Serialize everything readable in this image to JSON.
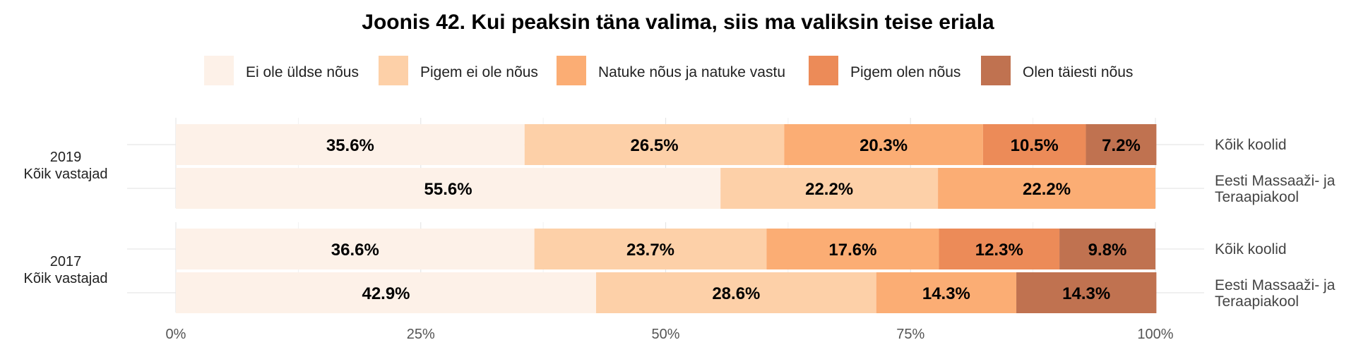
{
  "chart_data": {
    "type": "bar",
    "title": "Joonis 42. Kui peaksin täna valima, siis ma valiksin teise eriala",
    "categories_legend": [
      {
        "name": "Ei ole üldse nõus",
        "color": "#fdf1e8"
      },
      {
        "name": "Pigem ei ole nõus",
        "color": "#fdd0a8"
      },
      {
        "name": "Natuke nõus ja natuke vastu",
        "color": "#fbad74"
      },
      {
        "name": "Pigem olen nõus",
        "color": "#ec8b58"
      },
      {
        "name": "Olen täiesti nõus",
        "color": "#c07250"
      }
    ],
    "legend_position": "top",
    "x_ticks": [
      "0%",
      "25%",
      "50%",
      "75%",
      "100%"
    ],
    "xlim": [
      0,
      100
    ],
    "groups": [
      {
        "label_line1": "2019",
        "label_line2": "Kõik vastajad",
        "rows": [
          {
            "label_line1": "Kõik koolid",
            "label_line2": "",
            "values": [
              35.6,
              26.5,
              20.3,
              10.5,
              7.2
            ],
            "labels": [
              "35.6%",
              "26.5%",
              "20.3%",
              "10.5%",
              "7.2%"
            ]
          },
          {
            "label_line1": "Eesti Massaaži- ja",
            "label_line2": "Teraapiakool",
            "values": [
              55.6,
              22.2,
              22.2,
              0,
              0
            ],
            "labels": [
              "55.6%",
              "22.2%",
              "22.2%",
              "",
              ""
            ]
          }
        ]
      },
      {
        "label_line1": "2017",
        "label_line2": "Kõik vastajad",
        "rows": [
          {
            "label_line1": "Kõik koolid",
            "label_line2": "",
            "values": [
              36.6,
              23.7,
              17.6,
              12.3,
              9.8
            ],
            "labels": [
              "36.6%",
              "23.7%",
              "17.6%",
              "12.3%",
              "9.8%"
            ]
          },
          {
            "label_line1": "Eesti Massaaži- ja",
            "label_line2": "Teraapiakool",
            "values": [
              42.9,
              28.6,
              14.3,
              0,
              14.3
            ],
            "labels": [
              "42.9%",
              "28.6%",
              "14.3%",
              "",
              "14.3%"
            ]
          }
        ]
      }
    ]
  }
}
